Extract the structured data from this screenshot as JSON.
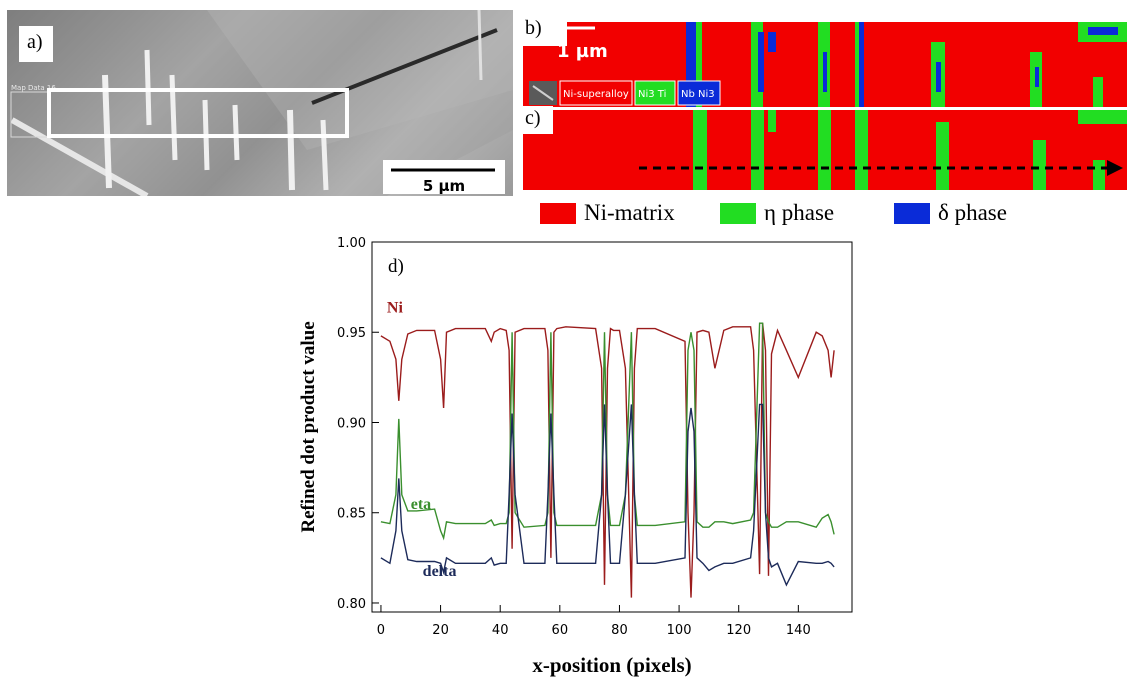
{
  "panels": {
    "a": {
      "label": "a)",
      "scale_bar": "5 µm",
      "overlay_text": "Map Data 16"
    },
    "b": {
      "label": "b)",
      "scale_bar": "1 µm",
      "phase_tags": [
        "Ni-superalloy",
        "Ni3 Ti",
        "Nb Ni3"
      ]
    },
    "c": {
      "label": "c)"
    },
    "d": {
      "label": "d)"
    }
  },
  "legend": {
    "items": [
      {
        "label": "Ni-matrix",
        "color": "#f20000"
      },
      {
        "label": "η phase",
        "color": "#22dd22"
      },
      {
        "label": "δ phase",
        "color": "#0a2bd8"
      }
    ]
  },
  "chart_data": {
    "type": "line",
    "xlabel": "x-position (pixels)",
    "ylabel": "Refined dot product value",
    "xlim": [
      -3,
      158
    ],
    "ylim": [
      0.795,
      1.0
    ],
    "xticks": [
      0,
      20,
      40,
      60,
      80,
      100,
      120,
      140
    ],
    "yticks": [
      0.8,
      0.85,
      0.9,
      0.95,
      1.0
    ],
    "ytick_labels": [
      "0.80",
      "0.85",
      "0.90",
      "0.95",
      "1.00"
    ],
    "grid": false,
    "series": [
      {
        "name": "Ni",
        "color": "#9b1c1c",
        "x": [
          0,
          3,
          5,
          6,
          7,
          9,
          12,
          18,
          20,
          21,
          22,
          25,
          35,
          37,
          38,
          40,
          42,
          43,
          44,
          45,
          48,
          55,
          56,
          57,
          58,
          59,
          62,
          72,
          74,
          75,
          76,
          77,
          78,
          80,
          82,
          84,
          85,
          86,
          88,
          92,
          102,
          103,
          104,
          105,
          106,
          108,
          110,
          112,
          115,
          118,
          124,
          125,
          127,
          128,
          129,
          130,
          131,
          133,
          136,
          140,
          146,
          148,
          150,
          151,
          152
        ],
        "y": [
          0.948,
          0.945,
          0.935,
          0.912,
          0.935,
          0.949,
          0.951,
          0.951,
          0.935,
          0.908,
          0.95,
          0.952,
          0.952,
          0.945,
          0.95,
          0.952,
          0.951,
          0.94,
          0.83,
          0.95,
          0.952,
          0.952,
          0.94,
          0.825,
          0.95,
          0.952,
          0.953,
          0.952,
          0.93,
          0.81,
          0.93,
          0.952,
          0.951,
          0.951,
          0.93,
          0.803,
          0.93,
          0.952,
          0.952,
          0.952,
          0.945,
          0.85,
          0.803,
          0.85,
          0.95,
          0.951,
          0.95,
          0.93,
          0.951,
          0.953,
          0.953,
          0.94,
          0.816,
          0.955,
          0.94,
          0.815,
          0.938,
          0.951,
          0.94,
          0.925,
          0.95,
          0.948,
          0.94,
          0.925,
          0.94
        ]
      },
      {
        "name": "eta",
        "color": "#3a8f2e",
        "x": [
          0,
          3,
          5,
          6,
          7,
          9,
          12,
          18,
          20,
          21,
          22,
          25,
          35,
          37,
          38,
          40,
          42,
          43,
          44,
          45,
          48,
          55,
          56,
          57,
          58,
          59,
          62,
          72,
          74,
          75,
          76,
          77,
          78,
          80,
          82,
          84,
          85,
          86,
          88,
          92,
          102,
          103,
          104,
          105,
          106,
          108,
          110,
          112,
          115,
          118,
          124,
          125,
          127,
          128,
          129,
          130,
          131,
          133,
          136,
          140,
          146,
          148,
          150,
          151,
          152
        ],
        "y": [
          0.845,
          0.844,
          0.86,
          0.902,
          0.86,
          0.851,
          0.851,
          0.852,
          0.84,
          0.836,
          0.845,
          0.844,
          0.844,
          0.846,
          0.843,
          0.844,
          0.844,
          0.85,
          0.95,
          0.85,
          0.842,
          0.843,
          0.85,
          0.95,
          0.85,
          0.843,
          0.843,
          0.843,
          0.86,
          0.95,
          0.86,
          0.843,
          0.843,
          0.843,
          0.86,
          0.95,
          0.86,
          0.843,
          0.843,
          0.843,
          0.845,
          0.94,
          0.95,
          0.94,
          0.845,
          0.842,
          0.842,
          0.845,
          0.845,
          0.844,
          0.846,
          0.85,
          0.955,
          0.955,
          0.85,
          0.845,
          0.842,
          0.842,
          0.845,
          0.845,
          0.842,
          0.847,
          0.849,
          0.845,
          0.838
        ]
      },
      {
        "name": "delta",
        "color": "#1d2b5a",
        "x": [
          0,
          3,
          5,
          6,
          7,
          9,
          12,
          18,
          20,
          21,
          22,
          25,
          35,
          37,
          38,
          40,
          42,
          43,
          44,
          45,
          48,
          55,
          56,
          57,
          58,
          59,
          62,
          72,
          74,
          75,
          76,
          77,
          78,
          80,
          82,
          84,
          85,
          86,
          88,
          92,
          102,
          103,
          104,
          105,
          106,
          108,
          110,
          112,
          115,
          118,
          124,
          125,
          127,
          128,
          129,
          130,
          131,
          133,
          136,
          140,
          146,
          148,
          150,
          151,
          152
        ],
        "y": [
          0.825,
          0.822,
          0.84,
          0.869,
          0.84,
          0.824,
          0.823,
          0.823,
          0.822,
          0.817,
          0.825,
          0.822,
          0.822,
          0.825,
          0.821,
          0.822,
          0.822,
          0.86,
          0.905,
          0.86,
          0.822,
          0.822,
          0.86,
          0.905,
          0.86,
          0.822,
          0.822,
          0.822,
          0.86,
          0.91,
          0.86,
          0.822,
          0.822,
          0.822,
          0.86,
          0.91,
          0.86,
          0.822,
          0.822,
          0.822,
          0.825,
          0.895,
          0.908,
          0.895,
          0.825,
          0.822,
          0.818,
          0.82,
          0.822,
          0.822,
          0.825,
          0.84,
          0.91,
          0.91,
          0.85,
          0.825,
          0.82,
          0.822,
          0.81,
          0.823,
          0.822,
          0.822,
          0.823,
          0.822,
          0.82
        ]
      }
    ]
  }
}
